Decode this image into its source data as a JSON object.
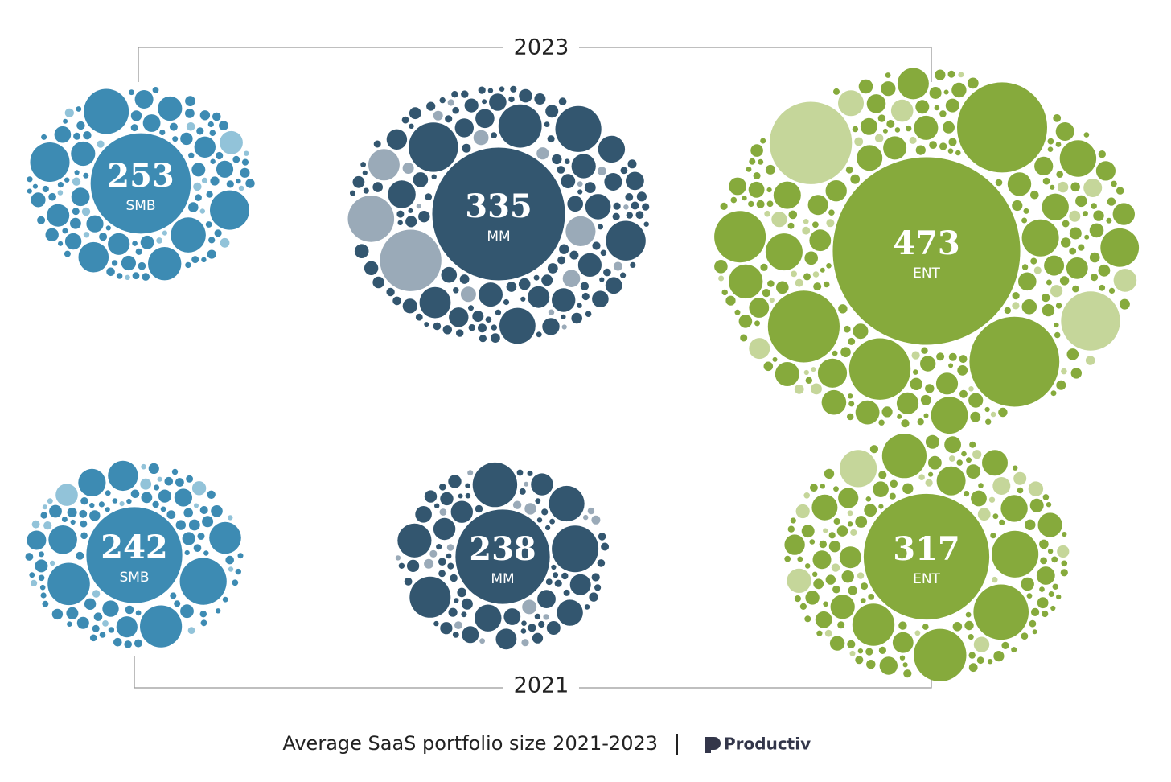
{
  "chart_data": {
    "type": "bubble",
    "caption": "Average SaaS portfolio size 2021-2023",
    "brand": "Productiv",
    "categories": [
      "SMB",
      "MM",
      "ENT"
    ],
    "colors": [
      "#3d8bb3",
      "#33566f",
      "#86aa3c"
    ],
    "light_colors": [
      "#92c3d9",
      "#9aaab8",
      "#c5d69a"
    ],
    "series": [
      {
        "name": "2023",
        "values": [
          253,
          335,
          473
        ]
      },
      {
        "name": "2021",
        "values": [
          242,
          238,
          317
        ]
      }
    ]
  }
}
